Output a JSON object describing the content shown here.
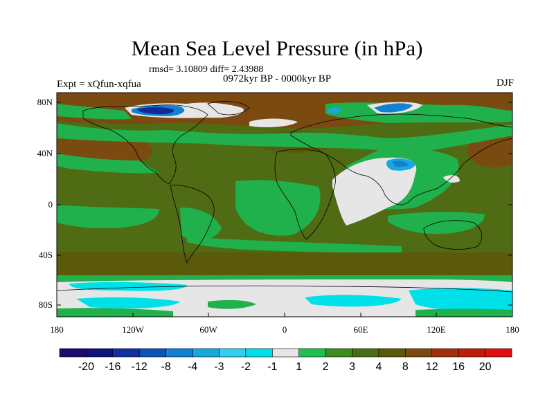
{
  "title": "Mean Sea Level Pressure (in hPa)",
  "stats": "rmsd= 3.10809 diff= 2.43988",
  "expt": "Expt = xQfun-xqfua",
  "period": "0972kyr BP - 0000kyr BP",
  "season": "DJF",
  "lat_ticks": [
    "80N",
    "40N",
    "0",
    "40S",
    "80S"
  ],
  "lon_ticks": [
    "180",
    "120W",
    "60W",
    "0",
    "60E",
    "120E",
    "180"
  ],
  "colorbar": {
    "labels": [
      "-20",
      "-16",
      "-12",
      "-8",
      "-4",
      "-3",
      "-2",
      "-1",
      "1",
      "2",
      "3",
      "4",
      "8",
      "12",
      "16",
      "20"
    ],
    "colors": [
      "#1c0a6e",
      "#10107f",
      "#1030a0",
      "#0c54b8",
      "#1080d0",
      "#18a8e0",
      "#30d0f0",
      "#00e0e8",
      "#e6e6e6",
      "#20c050",
      "#3c8c20",
      "#4a6e14",
      "#5a5a0a",
      "#7c4a10",
      "#a0300c",
      "#c01c08",
      "#e01010"
    ]
  },
  "colors": {
    "land_outline": "#000000",
    "background_field": "#4f6b14",
    "high_anomaly": "#7a4a10",
    "moderate_positive": "#20b14c",
    "near_zero": "#e6e6e6",
    "weak_negative": "#00e0e8",
    "moderate_negative": "#1480d0",
    "strong_negative": "#102a98"
  }
}
